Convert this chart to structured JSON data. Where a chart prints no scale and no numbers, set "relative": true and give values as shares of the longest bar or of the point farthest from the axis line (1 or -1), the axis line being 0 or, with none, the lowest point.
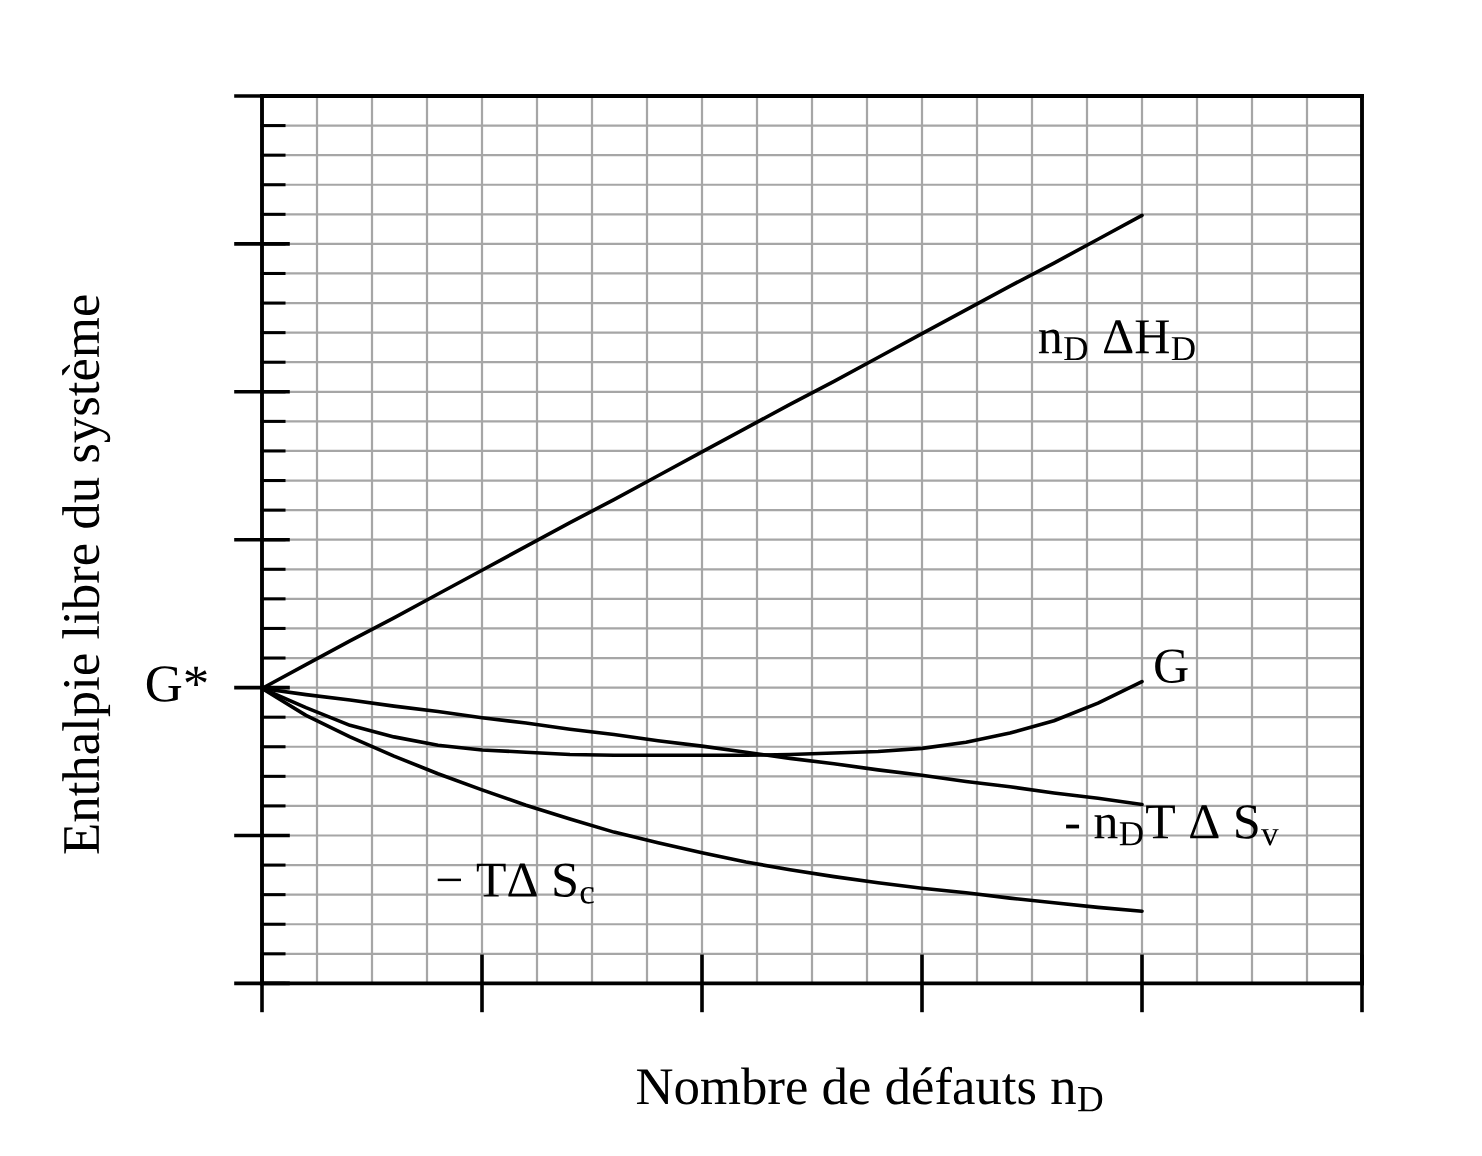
{
  "chart_data": {
    "type": "line",
    "relative": true,
    "xlabel": "Nombre de défauts n$_{D}$",
    "ylabel": "Enthalpie libre du système",
    "categories": [
      null,
      null,
      null,
      null,
      null,
      null,
      null,
      null,
      null,
      null,
      null,
      null,
      null,
      null,
      null,
      null,
      null,
      null,
      null,
      null,
      null
    ],
    "series": [
      {
        "name": "n$_{D}$ ΔH$_{D}$",
        "color": "#000000",
        "values": [
          0.384,
          0.415,
          0.446,
          0.476,
          0.507,
          0.538,
          0.569,
          0.6,
          0.63,
          0.661,
          0.692,
          0.723,
          0.754,
          0.784,
          0.815,
          0.846,
          0.877,
          0.908,
          0.938,
          0.969,
          1.0
        ]
      },
      {
        "name": "G",
        "color": "#000000",
        "values": [
          0.384,
          0.359,
          0.336,
          0.321,
          0.31,
          0.304,
          0.301,
          0.298,
          0.297,
          0.297,
          0.297,
          0.297,
          0.298,
          0.3,
          0.302,
          0.306,
          0.314,
          0.326,
          0.342,
          0.365,
          0.393
        ]
      },
      {
        "name": "- n$_{D}$T Δ S$_{v}$",
        "color": "#000000",
        "values": [
          0.384,
          0.376,
          0.369,
          0.361,
          0.354,
          0.346,
          0.339,
          0.331,
          0.324,
          0.316,
          0.309,
          0.301,
          0.293,
          0.286,
          0.278,
          0.271,
          0.263,
          0.256,
          0.248,
          0.241,
          0.233
        ]
      },
      {
        "name": "− TΔ S$_{c}$",
        "color": "#000000",
        "values": [
          0.384,
          0.349,
          0.321,
          0.296,
          0.273,
          0.252,
          0.232,
          0.214,
          0.197,
          0.183,
          0.17,
          0.158,
          0.148,
          0.139,
          0.131,
          0.124,
          0.118,
          0.111,
          0.105,
          0.099,
          0.094
        ]
      }
    ],
    "annotations": [
      "G*"
    ],
    "grid": true,
    "line_style": "solid"
  }
}
